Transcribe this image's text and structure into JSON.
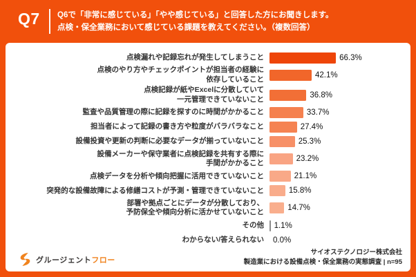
{
  "header": {
    "q_label": "Q7",
    "title_line1": "Q6で「非常に感じている」「やや感じている」と回答した方にお聞きします。",
    "title_line2": "点検・保全業務において感じている課題を教えてください。（複数回答）"
  },
  "chart_data": {
    "type": "bar",
    "orientation": "horizontal",
    "unit": "%",
    "xlim": [
      0,
      100
    ],
    "grid": false,
    "legend": false,
    "categories": [
      "点検漏れや記録忘れが発生してしまうこと",
      "点検のやり方やチェックポイントが担当者の経験に依存していること",
      "点検記録が紙やExcelに分散していて一元管理できていないこと",
      "監査や品質管理の際に記録を探すのに時間がかかること",
      "担当者によって記録の書き方や粒度がバラバラなこと",
      "設備投資や更新の判断に必要なデータが揃っていないこと",
      "設備メーカーや保守業者に点検記録を共有する際に手間がかかること",
      "点検データを分析や傾向把握に活用できていないこと",
      "突発的な設備故障による修繕コストが予測・管理できていないこと",
      "部署や拠点ごとにデータが分散しており、予防保全や傾向分析に活かせていないこと",
      "その他",
      "わからない/答えられない"
    ],
    "values": [
      66.3,
      42.1,
      36.8,
      33.7,
      27.4,
      25.3,
      23.2,
      21.1,
      15.8,
      14.7,
      1.1,
      0.0
    ],
    "rows": [
      {
        "label_lines": [
          "点検漏れや記録忘れが発生してしまうこと"
        ],
        "value": 66.3,
        "display": "66.3%",
        "color": "#EE4509"
      },
      {
        "label_lines": [
          "点検のやり方やチェックポイントが担当者の経験に",
          "依存していること"
        ],
        "value": 42.1,
        "display": "42.1%",
        "color": "#F1662A"
      },
      {
        "label_lines": [
          "点検記録が紙やExcelに分散していて",
          "一元管理できていないこと"
        ],
        "value": 36.8,
        "display": "36.8%",
        "color": "#F26F36"
      },
      {
        "label_lines": [
          "監査や品質管理の際に記録を探すのに時間がかかること"
        ],
        "value": 33.7,
        "display": "33.7%",
        "color": "#F5814F"
      },
      {
        "label_lines": [
          "担当者によって記録の書き方や粒度がバラバラなこと"
        ],
        "value": 27.4,
        "display": "27.4%",
        "color": "#F58352"
      },
      {
        "label_lines": [
          "設備投資や更新の判断に必要なデータが揃っていないこと"
        ],
        "value": 25.3,
        "display": "25.3%",
        "color": "#F79067"
      },
      {
        "label_lines": [
          "設備メーカーや保守業者に点検記録を共有する際に",
          "手間がかかること"
        ],
        "value": 23.2,
        "display": "23.2%",
        "color": "#F9A483"
      },
      {
        "label_lines": [
          "点検データを分析や傾向把握に活用できていないこと"
        ],
        "value": 21.1,
        "display": "21.1%",
        "color": "#F9A988"
      },
      {
        "label_lines": [
          "突発的な設備故障による修繕コストが予測・管理できていないこと"
        ],
        "value": 15.8,
        "display": "15.8%",
        "color": "#F9AC8B"
      },
      {
        "label_lines": [
          "部署や拠点ごとにデータが分散しており、",
          "予防保全や傾向分析に活かせていないこと"
        ],
        "value": 14.7,
        "display": "14.7%",
        "color": "#F9AE8D"
      },
      {
        "label_lines": [
          "その他"
        ],
        "value": 1.1,
        "display": "1.1%",
        "color": "#8a8a8a"
      },
      {
        "label_lines": [
          "わからない/答えられない"
        ],
        "value": 0.0,
        "display": "0.0%",
        "color": "#F9AE8D"
      }
    ]
  },
  "footer": {
    "logo_text_dark": "グルージェント",
    "logo_text_orange": "フロー",
    "source_line1": "サイオステクノロジー株式会社",
    "source_line2": "製造業における設備点検・保全業務の実態調査 | n=95"
  },
  "colors": {
    "accent_orange": "#F1500C",
    "panel_bg": "#FFFFFF",
    "logo_orange": "#F0831E"
  }
}
